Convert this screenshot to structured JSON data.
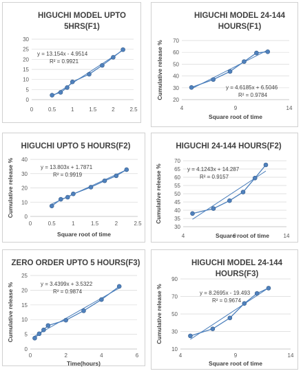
{
  "chart_data": [
    {
      "type": "scatter",
      "title": [
        "HIGUCHI MODEL UPTO",
        "5HRS(F1)"
      ],
      "xlabel": "",
      "ylabel": "",
      "xlim": [
        0,
        2.5
      ],
      "xticks": [
        0,
        0.5,
        1,
        1.5,
        2,
        2.5
      ],
      "ylim": [
        0,
        30
      ],
      "yticks": [
        0,
        5,
        10,
        15,
        20,
        25,
        30
      ],
      "x": [
        0.5,
        0.71,
        0.87,
        1.0,
        1.41,
        1.73,
        2.0,
        2.24
      ],
      "y": [
        2.2,
        3.6,
        6.0,
        8.8,
        12.6,
        17.0,
        21.0,
        24.8
      ],
      "trendline": {
        "slope": 13.154,
        "intercept": -4.9514
      },
      "equation": "y = 13.154x - 4.9514",
      "r2": "R² = 0.9921"
    },
    {
      "type": "scatter",
      "title": [
        "HIGUCHI MODEL 24-144",
        "HOURS(F1)"
      ],
      "xlabel": "Square root of time",
      "ylabel": "Cumulative release %",
      "xlim": [
        4,
        14
      ],
      "xticks": [
        4,
        9,
        14
      ],
      "ylim": [
        20,
        70
      ],
      "yticks": [
        20,
        30,
        40,
        50,
        60,
        70
      ],
      "x": [
        4.9,
        6.93,
        8.49,
        9.8,
        10.95,
        12.0
      ],
      "y": [
        30.3,
        37.0,
        43.8,
        52.2,
        59.5,
        60.5
      ],
      "trendline": {
        "slope": 4.6185,
        "intercept": 6.5046
      },
      "equation": "y = 4.6185x + 6.5046",
      "r2": "R² = 0.9784"
    },
    {
      "type": "scatter",
      "title": [
        "HIGUCHI UPTO 5 HOURS(F2)"
      ],
      "xlabel": "Square root of time",
      "ylabel": "Cumulative release %",
      "xlim": [
        0,
        2.5
      ],
      "xticks": [
        0,
        0.5,
        1,
        1.5,
        2,
        2.5
      ],
      "ylim": [
        0,
        40
      ],
      "yticks": [
        0,
        10,
        20,
        30,
        40
      ],
      "x": [
        0.5,
        0.71,
        0.87,
        1.0,
        1.41,
        1.73,
        2.0,
        2.24
      ],
      "y": [
        7.3,
        12.0,
        13.5,
        15.8,
        20.5,
        25.0,
        28.5,
        32.8
      ],
      "trendline": {
        "slope": 13.803,
        "intercept": 1.7871
      },
      "equation": "y = 13.803x + 1.7871",
      "r2": "R² = 0.9919"
    },
    {
      "type": "scatter",
      "title": [
        "HIGUCHI 24-144 HOURS(F2)"
      ],
      "xlabel": "Square root of time",
      "ylabel": "Cumulative release %",
      "xlim": [
        4,
        14
      ],
      "xticks": [
        4,
        9,
        14
      ],
      "ylim": [
        30,
        70
      ],
      "yticks": [
        30,
        35,
        40,
        45,
        50,
        55,
        60,
        65,
        70
      ],
      "x": [
        4.9,
        6.93,
        8.49,
        9.8,
        10.95,
        12.0
      ],
      "y": [
        38.0,
        41.0,
        45.8,
        51.0,
        59.5,
        67.5
      ],
      "trendline": {
        "slope": 4.1243,
        "intercept": 14.287
      },
      "equation": "y = 4.1243x + 14.287",
      "r2": "R² = 0.9157"
    },
    {
      "type": "scatter",
      "title": [
        "ZERO ORDER UPTO 5 HOURS(F3)"
      ],
      "xlabel": "Time(hours)",
      "ylabel": "Cumulative release %",
      "xlim": [
        0,
        6
      ],
      "xticks": [
        0,
        2,
        4,
        6
      ],
      "ylim": [
        0,
        25
      ],
      "yticks": [
        0,
        5,
        10,
        15,
        20,
        25
      ],
      "x": [
        0.25,
        0.5,
        0.75,
        1.0,
        2.0,
        3.0,
        4.0,
        5.0
      ],
      "y": [
        3.7,
        5.2,
        6.5,
        8.0,
        9.8,
        13.0,
        16.8,
        21.3
      ],
      "trendline": {
        "slope": 3.4399,
        "intercept": 3.5322
      },
      "equation": "y = 3.4399x + 3.5322",
      "r2": "R² = 0.9874"
    },
    {
      "type": "scatter",
      "title": [
        "HIGUCHI MODEL 24-144",
        "HOURS(F3)"
      ],
      "xlabel": "Square root of time",
      "ylabel": "Cumulative release %",
      "xlim": [
        4,
        14
      ],
      "xticks": [
        4,
        9,
        14
      ],
      "ylim": [
        10,
        90
      ],
      "yticks": [
        10,
        30,
        50,
        70,
        90
      ],
      "x": [
        4.9,
        6.93,
        8.49,
        9.8,
        10.95,
        12.0
      ],
      "y": [
        25.0,
        33.0,
        45.5,
        62.0,
        73.5,
        79.5
      ],
      "trendline": {
        "slope": 8.2695,
        "intercept": -19.493
      },
      "equation": "y = 8.2695x - 19.493",
      "r2": "R² = 0.9674"
    }
  ],
  "style": {
    "series_color": "#4a7ebb",
    "trend_color": "#4a7ebb",
    "marker_fill": "#4f81bd"
  }
}
